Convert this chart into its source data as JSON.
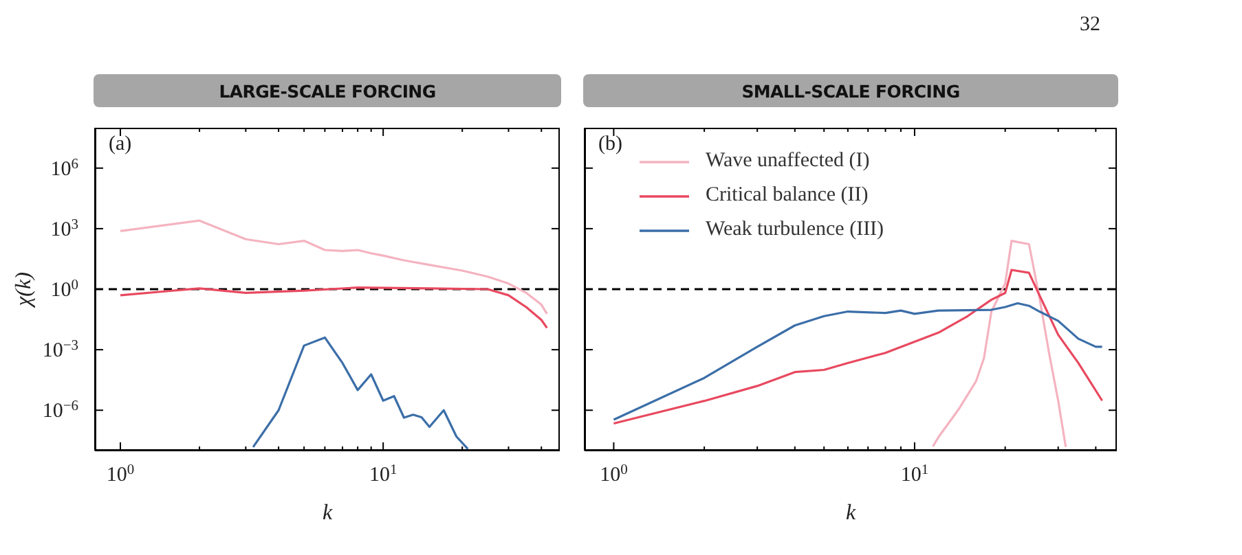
{
  "chart_data": [
    {
      "type": "line",
      "title": "LARGE-SCALE FORCING",
      "xlabel": "k",
      "ylabel": "χ(k)",
      "annotations": [
        "(a)"
      ],
      "log": "xy",
      "grid": false,
      "legend": false,
      "xlim": [
        0.8,
        47
      ],
      "ylim": [
        1e-08,
        100000000.0
      ],
      "xticks": [
        {
          "value": 1,
          "label": "10$^{0}$"
        },
        {
          "value": 2,
          "label": null
        },
        {
          "value": 3,
          "label": null
        },
        {
          "value": 4,
          "label": null
        },
        {
          "value": 5,
          "label": null
        },
        {
          "value": 6,
          "label": null
        },
        {
          "value": 7,
          "label": null
        },
        {
          "value": 8,
          "label": null
        },
        {
          "value": 9,
          "label": null
        },
        {
          "value": 10,
          "label": "10$^{1}$"
        },
        {
          "value": 20,
          "label": null
        },
        {
          "value": 30,
          "label": null
        },
        {
          "value": 40,
          "label": null
        }
      ],
      "yticks": [
        {
          "value": 1e-06,
          "label": "10$^{−6}$"
        },
        {
          "value": 0.001,
          "label": "10$^{−3}$"
        },
        {
          "value": 1,
          "label": "10$^{0}$"
        },
        {
          "value": 1000,
          "label": "10$^{3}$"
        },
        {
          "value": 1000000,
          "label": "10$^{6}$"
        }
      ],
      "ref_lines": [
        {
          "axis": "y",
          "value": 1,
          "color": "#000000",
          "line_style": "dashed"
        }
      ],
      "series": [
        {
          "color": "#f4b3c0",
          "x": [
            1,
            2,
            3,
            4,
            5,
            6,
            7,
            8,
            9,
            10,
            12,
            15,
            20,
            25,
            30,
            35,
            40,
            42
          ],
          "values": [
            760,
            2500,
            300,
            170,
            250,
            87,
            78,
            87,
            60,
            46,
            27,
            16,
            8.3,
            4.2,
            1.9,
            0.66,
            0.17,
            0.06
          ]
        },
        {
          "color": "#e8495f",
          "x": [
            1,
            2,
            3,
            5,
            8,
            15,
            25,
            30,
            35,
            40,
            42
          ],
          "values": [
            0.5,
            1.1,
            0.66,
            0.85,
            1.2,
            1.1,
            1,
            0.5,
            0.13,
            0.03,
            0.012
          ]
        },
        {
          "color": "#3b6ea8",
          "x": [
            3.2,
            4,
            5,
            6,
            7,
            8,
            9,
            10,
            11,
            12,
            13,
            14,
            15,
            17,
            19,
            21
          ],
          "values": [
            1.5e-08,
            1e-06,
            0.0016,
            0.004,
            0.00022,
            1e-05,
            6e-05,
            3e-06,
            5e-06,
            4.3e-07,
            6e-07,
            4.5e-07,
            1.5e-07,
            1e-06,
            5e-08,
            1.2e-08
          ]
        }
      ]
    },
    {
      "type": "line",
      "title": "SMALL-SCALE FORCING",
      "xlabel": "k",
      "annotations": [
        "(b)",
        "32"
      ],
      "log": "xy",
      "grid": false,
      "legend": "top left",
      "tick_labels": "x",
      "xlim": [
        0.8,
        47
      ],
      "ylim": [
        1e-08,
        100000000.0
      ],
      "xticks": [
        {
          "value": 1,
          "label": "10$^{0}$"
        },
        {
          "value": 2,
          "label": null
        },
        {
          "value": 3,
          "label": null
        },
        {
          "value": 4,
          "label": null
        },
        {
          "value": 5,
          "label": null
        },
        {
          "value": 6,
          "label": null
        },
        {
          "value": 7,
          "label": null
        },
        {
          "value": 8,
          "label": null
        },
        {
          "value": 9,
          "label": null
        },
        {
          "value": 10,
          "label": "10$^{1}$"
        },
        {
          "value": 20,
          "label": null
        },
        {
          "value": 30,
          "label": null
        },
        {
          "value": 40,
          "label": null
        }
      ],
      "yticks": [
        {
          "value": 1e-06,
          "label": null
        },
        {
          "value": 0.001,
          "label": null
        },
        {
          "value": 1,
          "label": null
        },
        {
          "value": 1000,
          "label": null
        },
        {
          "value": 1000000,
          "label": null
        }
      ],
      "ref_lines": [
        {
          "axis": "y",
          "value": 1,
          "color": "#000000",
          "line_style": "dashed"
        }
      ],
      "series": [
        {
          "name": "Wave unaffected (I)",
          "color": "#f4b3c0",
          "x": [
            11.5,
            12,
            14,
            16,
            17,
            18,
            20,
            21,
            24,
            26,
            28,
            30,
            31.8
          ],
          "values": [
            1.6e-08,
            4.6e-08,
            1.1e-06,
            2.7e-05,
            0.00038,
            0.078,
            1.9,
            250,
            170,
            0.38,
            0.00065,
            3e-06,
            1.5e-08
          ]
        },
        {
          "name": "Critical balance (II)",
          "color": "#e8495f",
          "x": [
            1,
            2,
            3,
            4,
            5,
            6,
            8,
            10,
            12,
            15,
            18,
            20,
            21,
            24,
            26,
            30,
            35,
            42
          ],
          "values": [
            2.2e-07,
            2.9e-06,
            1.6e-05,
            7.8e-05,
            0.0001,
            0.00022,
            0.0007,
            0.0025,
            0.007,
            0.046,
            0.3,
            0.65,
            9,
            6.5,
            0.5,
            0.0055,
            0.00022,
            3e-06
          ]
        },
        {
          "name": "Weak turbulence (III)",
          "color": "#3b6ea8",
          "x": [
            1,
            2,
            3,
            4,
            5,
            6,
            8,
            9,
            10,
            12,
            15,
            18,
            20,
            22,
            24,
            26,
            30,
            35,
            40,
            42
          ],
          "values": [
            3.4e-07,
            4e-05,
            0.0014,
            0.016,
            0.046,
            0.078,
            0.066,
            0.087,
            0.06,
            0.087,
            0.09,
            0.095,
            0.13,
            0.2,
            0.15,
            0.078,
            0.027,
            0.0035,
            0.0014,
            0.0014
          ]
        }
      ]
    }
  ]
}
